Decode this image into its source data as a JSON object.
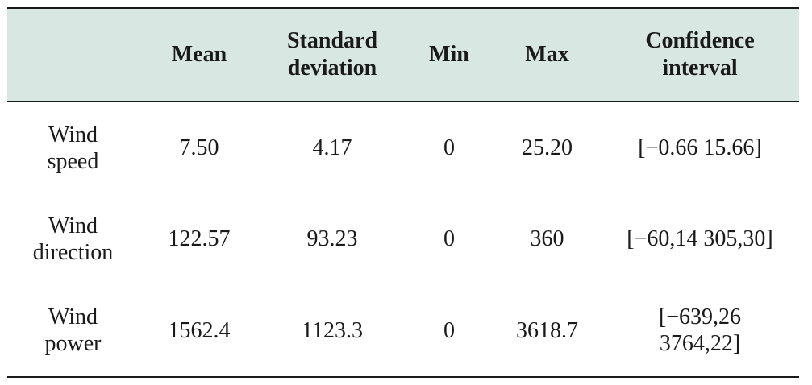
{
  "table": {
    "headers": [
      "",
      "Mean",
      "Standard deviation",
      "Min",
      "Max",
      "Confidence interval"
    ],
    "header_lines": [
      [
        ""
      ],
      [
        "Mean"
      ],
      [
        "Standard",
        "deviation"
      ],
      [
        "Min"
      ],
      [
        "Max"
      ],
      [
        "Confidence",
        "interval"
      ]
    ],
    "rows": [
      {
        "label": "Wind speed",
        "label_lines": [
          "Wind",
          "speed"
        ],
        "mean": "7.50",
        "std": "4.17",
        "min": "0",
        "max": "25.20",
        "ci": "[−0.66 15.66]",
        "ci_lines": [
          "[−0.66 15.66]"
        ]
      },
      {
        "label": "Wind direction",
        "label_lines": [
          "Wind",
          "direction"
        ],
        "mean": "122.57",
        "std": "93.23",
        "min": "0",
        "max": "360",
        "ci": "[−60,14 305,30]",
        "ci_lines": [
          "[−60,14 305,30]"
        ]
      },
      {
        "label": "Wind power",
        "label_lines": [
          "Wind",
          "power"
        ],
        "mean": "1562.4",
        "std": "1123.3",
        "min": "0",
        "max": "3618.7",
        "ci": "[−639,26 3764,22]",
        "ci_lines": [
          "[−639,26",
          "3764,22]"
        ]
      }
    ],
    "header_bg": "#d8e7e2",
    "rule_color": "#1a1a1a"
  }
}
